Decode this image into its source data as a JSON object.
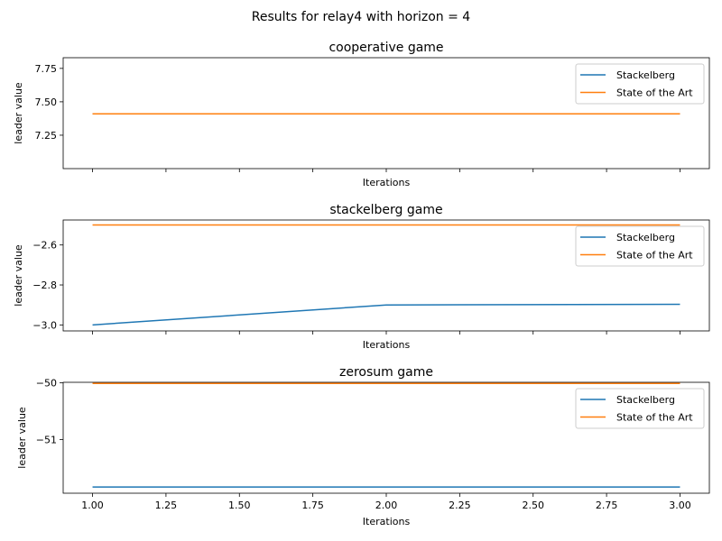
{
  "figure_title": "Results for relay4 with horizon = 4",
  "colors": {
    "stackelberg": "#1f77b4",
    "state_of_the_art": "#ff7f0e"
  },
  "chart_data": [
    {
      "type": "line",
      "title": "cooperative game",
      "xlabel": "Iterations",
      "ylabel": "leader value",
      "x": [
        1.0,
        2.0,
        3.0
      ],
      "xlim": [
        0.9,
        3.1
      ],
      "ylim": [
        7.0,
        7.83
      ],
      "yticks": [
        7.25,
        7.5,
        7.75
      ],
      "ytick_labels": [
        "7.25",
        "7.50",
        "7.75"
      ],
      "show_x_tick_labels": false,
      "legend": "upper right",
      "series": [
        {
          "name": "Stackelberg",
          "color": "#1f77b4",
          "values": [
            7.41,
            7.41,
            7.41
          ]
        },
        {
          "name": "State of the Art",
          "color": "#ff7f0e",
          "values": [
            7.41,
            7.41,
            7.41
          ]
        }
      ]
    },
    {
      "type": "line",
      "title": "stackelberg game",
      "xlabel": "Iterations",
      "ylabel": "leader value",
      "x": [
        1.0,
        2.0,
        3.0
      ],
      "xlim": [
        0.9,
        3.1
      ],
      "ylim": [
        -3.03,
        -2.475
      ],
      "yticks": [
        -3.0,
        -2.8,
        -2.6
      ],
      "ytick_labels": [
        "−3.0",
        "−2.8",
        "−2.6"
      ],
      "show_x_tick_labels": false,
      "legend": "upper right",
      "series": [
        {
          "name": "Stackelberg",
          "color": "#1f77b4",
          "values": [
            -3.0,
            -2.9,
            -2.897
          ]
        },
        {
          "name": "State of the Art",
          "color": "#ff7f0e",
          "values": [
            -2.5,
            -2.5,
            -2.5
          ]
        }
      ]
    },
    {
      "type": "line",
      "title": "zerosum game",
      "xlabel": "Iterations",
      "ylabel": "leader value",
      "x": [
        1.0,
        2.0,
        3.0
      ],
      "xlim": [
        0.9,
        3.1
      ],
      "ylim": [
        -51.95,
        -49.99
      ],
      "yticks": [
        -51,
        -50
      ],
      "ytick_labels": [
        "−51",
        "−50"
      ],
      "xticks": [
        1.0,
        1.25,
        1.5,
        1.75,
        2.0,
        2.25,
        2.5,
        2.75,
        3.0
      ],
      "xtick_labels": [
        "1.00",
        "1.25",
        "1.50",
        "1.75",
        "2.00",
        "2.25",
        "2.50",
        "2.75",
        "3.00"
      ],
      "show_x_tick_labels": true,
      "legend": "upper right",
      "series": [
        {
          "name": "Stackelberg",
          "color": "#1f77b4",
          "values": [
            -51.84,
            -51.84,
            -51.84
          ]
        },
        {
          "name": "State of the Art",
          "color": "#ff7f0e",
          "values": [
            -50.01,
            -50.01,
            -50.01
          ]
        }
      ]
    }
  ]
}
